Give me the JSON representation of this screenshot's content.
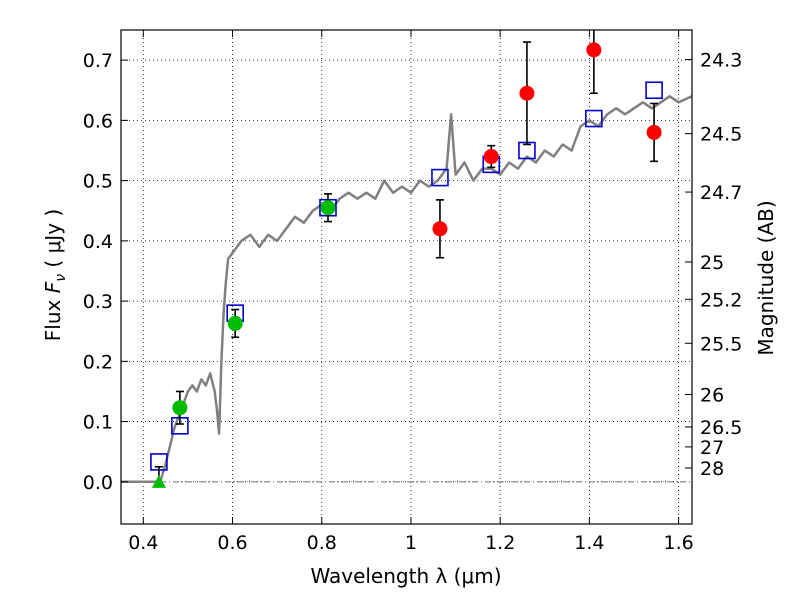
{
  "chart_data": {
    "type": "scatter",
    "xlabel": "Wavelength  λ (μm)",
    "ylabel": "Flux  F_ν  ( μJy )",
    "ylabel_parts": {
      "prefix": "Flux  ",
      "symbol": "F",
      "subscript": "ν",
      "unit": "  ( μJy )"
    },
    "y2label": "Magnitude (AB)",
    "xlim": [
      0.35,
      1.63
    ],
    "ylim": [
      -0.07,
      0.75
    ],
    "grid": true,
    "x_ticks": [
      0.4,
      0.6,
      0.8,
      1.0,
      1.2,
      1.4,
      1.6
    ],
    "x_tick_labels": [
      "0.4",
      "0.6",
      "0.8",
      "1",
      "1.2",
      "1.4",
      "1.6"
    ],
    "y_ticks": [
      0.0,
      0.1,
      0.2,
      0.3,
      0.4,
      0.5,
      0.6,
      0.7
    ],
    "y_tick_labels": [
      "0.0",
      "0.1",
      "0.2",
      "0.3",
      "0.4",
      "0.5",
      "0.6",
      "0.7"
    ],
    "mag_ticks": [
      {
        "label": "24.3",
        "flux": 0.701
      },
      {
        "label": "24.5",
        "flux": 0.578
      },
      {
        "label": "24.7",
        "flux": 0.481
      },
      {
        "label": "25",
        "flux": 0.365
      },
      {
        "label": "25.2",
        "flux": 0.303
      },
      {
        "label": "25.5",
        "flux": 0.23
      },
      {
        "label": "26",
        "flux": 0.145
      },
      {
        "label": "26.5",
        "flux": 0.091
      },
      {
        "label": "27",
        "flux": 0.058
      },
      {
        "label": "28",
        "flux": 0.023
      }
    ],
    "colors": {
      "model": "#808080",
      "model_photometry": "#0000cc",
      "observed_red": "#ff0000",
      "observed_green": "#00bb00",
      "upper_limit": "#00bb00",
      "errorbar": "#000000"
    },
    "series": [
      {
        "name": "model spectrum",
        "kind": "line",
        "x": [
          0.35,
          0.4,
          0.43,
          0.44,
          0.45,
          0.46,
          0.47,
          0.48,
          0.49,
          0.5,
          0.51,
          0.52,
          0.53,
          0.54,
          0.55,
          0.56,
          0.565,
          0.57,
          0.575,
          0.58,
          0.585,
          0.59,
          0.6,
          0.61,
          0.62,
          0.64,
          0.66,
          0.68,
          0.7,
          0.72,
          0.74,
          0.76,
          0.78,
          0.8,
          0.82,
          0.84,
          0.86,
          0.88,
          0.9,
          0.92,
          0.94,
          0.96,
          0.98,
          1.0,
          1.02,
          1.04,
          1.06,
          1.08,
          1.09,
          1.1,
          1.12,
          1.14,
          1.16,
          1.18,
          1.2,
          1.22,
          1.24,
          1.26,
          1.28,
          1.3,
          1.32,
          1.34,
          1.36,
          1.38,
          1.4,
          1.42,
          1.44,
          1.46,
          1.48,
          1.5,
          1.52,
          1.54,
          1.56,
          1.58,
          1.6,
          1.63
        ],
        "y": [
          0.0,
          0.0,
          0.0,
          0.005,
          0.03,
          0.06,
          0.09,
          0.11,
          0.13,
          0.15,
          0.16,
          0.15,
          0.17,
          0.16,
          0.18,
          0.15,
          0.12,
          0.08,
          0.2,
          0.28,
          0.33,
          0.37,
          0.38,
          0.39,
          0.4,
          0.41,
          0.39,
          0.41,
          0.4,
          0.42,
          0.44,
          0.43,
          0.45,
          0.46,
          0.45,
          0.47,
          0.48,
          0.47,
          0.48,
          0.47,
          0.5,
          0.48,
          0.49,
          0.48,
          0.5,
          0.49,
          0.5,
          0.52,
          0.61,
          0.51,
          0.53,
          0.5,
          0.52,
          0.52,
          0.51,
          0.53,
          0.52,
          0.54,
          0.53,
          0.55,
          0.54,
          0.56,
          0.55,
          0.59,
          0.6,
          0.59,
          0.61,
          0.62,
          0.61,
          0.62,
          0.63,
          0.62,
          0.63,
          0.64,
          0.63,
          0.64
        ]
      },
      {
        "name": "model photometry",
        "kind": "open-square",
        "x": [
          0.435,
          0.482,
          0.606,
          0.814,
          1.065,
          1.18,
          1.26,
          1.41,
          1.545
        ],
        "y": [
          0.033,
          0.093,
          0.28,
          0.455,
          0.505,
          0.527,
          0.55,
          0.603,
          0.65
        ]
      },
      {
        "name": "observed (green)",
        "kind": "filled-circle",
        "x": [
          0.482,
          0.606,
          0.814
        ],
        "y": [
          0.123,
          0.263,
          0.455
        ],
        "err": [
          0.027,
          0.023,
          0.023
        ]
      },
      {
        "name": "observed (red)",
        "kind": "filled-circle",
        "x": [
          1.065,
          1.18,
          1.26,
          1.41,
          1.545
        ],
        "y": [
          0.42,
          0.54,
          0.645,
          0.717,
          0.58
        ],
        "err": [
          0.048,
          0.018,
          0.085,
          0.072,
          0.048
        ]
      },
      {
        "name": "upper limit",
        "kind": "triangle",
        "x": [
          0.435
        ],
        "y": [
          0.0
        ],
        "err": [
          0.025
        ]
      }
    ]
  }
}
